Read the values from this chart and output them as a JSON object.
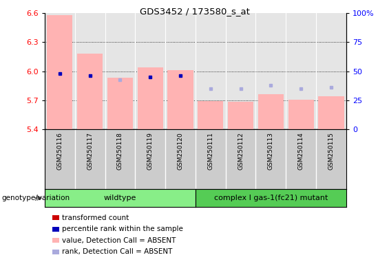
{
  "title": "GDS3452 / 173580_s_at",
  "samples": [
    "GSM250116",
    "GSM250117",
    "GSM250118",
    "GSM250119",
    "GSM250120",
    "GSM250111",
    "GSM250112",
    "GSM250113",
    "GSM250114",
    "GSM250115"
  ],
  "bar_values": [
    6.58,
    6.18,
    5.935,
    6.04,
    6.01,
    5.69,
    5.685,
    5.76,
    5.71,
    5.74
  ],
  "rank_values": [
    48,
    46,
    43,
    45,
    46,
    35,
    35,
    38,
    35,
    36
  ],
  "bar_absent": [
    true,
    true,
    true,
    true,
    true,
    true,
    true,
    true,
    true,
    true
  ],
  "rank_absent": [
    false,
    false,
    true,
    false,
    false,
    true,
    true,
    true,
    true,
    true
  ],
  "ylim_left": [
    5.4,
    6.6
  ],
  "ylim_right": [
    0,
    100
  ],
  "yticks_left": [
    5.4,
    5.7,
    6.0,
    6.3,
    6.6
  ],
  "yticks_right": [
    0,
    25,
    50,
    75,
    100
  ],
  "ytick_labels_right": [
    "0",
    "25",
    "50",
    "75",
    "100%"
  ],
  "bar_color_absent": "#ffb3b3",
  "bar_color_present": "#cc0000",
  "rank_color_present": "#0000bb",
  "rank_color_absent": "#aaaadd",
  "bg_color_sample": "#cccccc",
  "wildtype_color": "#88ee88",
  "mutant_color": "#55cc55",
  "genotype_label": "genotype/variation",
  "wildtype_label": "wildtype",
  "mutant_label": "complex I gas-1(fc21) mutant",
  "legend_items": [
    {
      "label": "transformed count",
      "color": "#cc0000"
    },
    {
      "label": "percentile rank within the sample",
      "color": "#0000bb"
    },
    {
      "label": "value, Detection Call = ABSENT",
      "color": "#ffb3b3"
    },
    {
      "label": "rank, Detection Call = ABSENT",
      "color": "#aaaadd"
    }
  ]
}
